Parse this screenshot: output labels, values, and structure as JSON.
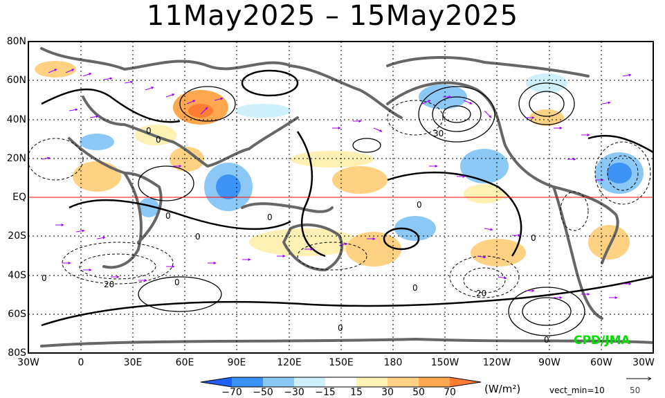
{
  "title": "11May2025 – 15May2025",
  "lat_labels": [
    "80N",
    "60N",
    "40N",
    "20N",
    "EQ",
    "20S",
    "40S",
    "60S",
    "80S"
  ],
  "lon_labels": [
    "30W",
    "0",
    "30E",
    "60E",
    "90E",
    "120E",
    "150E",
    "180",
    "150W",
    "120W",
    "90W",
    "60W",
    "30W"
  ],
  "colorbar": {
    "ticks": [
      "−70",
      "−50",
      "−30",
      "−15",
      "15",
      "30",
      "50",
      "70"
    ],
    "colors": [
      "#1f5ff5",
      "#3d92f5",
      "#8cc8f5",
      "#cdf0fa",
      "#ffffff",
      "#fff0b4",
      "#ffd283",
      "#ffa850",
      "#ff7d32"
    ],
    "unit": "(W/m²)",
    "vect_min_label": "vect_min=10"
  },
  "reference_vector": {
    "label": "50"
  },
  "credit": "CPD/JMA",
  "contour_labels": [
    "0",
    "0",
    "0",
    "0",
    "0",
    "0",
    "0",
    "0",
    "0",
    "0",
    "0",
    "0",
    "30",
    "20",
    "20"
  ]
}
